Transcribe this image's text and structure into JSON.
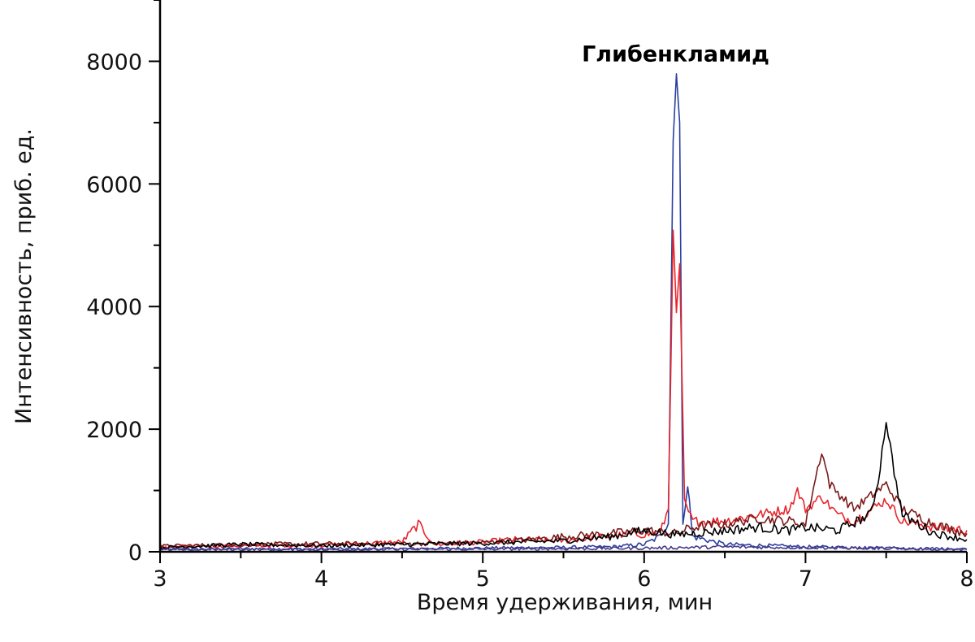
{
  "chart_data": {
    "type": "line",
    "title": "",
    "xlabel": "Время удерживания, мин",
    "ylabel": "Интенсивность, приб. ед.",
    "xlim": [
      3,
      8
    ],
    "ylim": [
      0,
      9000
    ],
    "x_ticks": [
      3,
      4,
      5,
      6,
      7,
      8
    ],
    "y_ticks": [
      0,
      2000,
      4000,
      6000,
      8000
    ],
    "x_tick_labels": [
      "3",
      "4",
      "5",
      "6",
      "7",
      "8"
    ],
    "y_tick_labels": [
      "0",
      "2000",
      "4000",
      "6000",
      "8000"
    ],
    "grid": false,
    "legend": "none",
    "annotations": [
      {
        "text": "Глибенкламид",
        "x": 6.2,
        "y": 8000
      }
    ],
    "series": [
      {
        "color": "#2b3fa0",
        "points": [
          [
            3.0,
            40
          ],
          [
            3.5,
            50
          ],
          [
            4.0,
            45
          ],
          [
            4.5,
            50
          ],
          [
            5.0,
            60
          ],
          [
            5.5,
            70
          ],
          [
            5.8,
            80
          ],
          [
            6.0,
            120
          ],
          [
            6.1,
            250
          ],
          [
            6.15,
            500
          ],
          [
            6.18,
            6700
          ],
          [
            6.2,
            7800
          ],
          [
            6.22,
            7000
          ],
          [
            6.24,
            500
          ],
          [
            6.27,
            1100
          ],
          [
            6.3,
            250
          ],
          [
            6.5,
            120
          ],
          [
            7.0,
            80
          ],
          [
            7.5,
            60
          ],
          [
            8.0,
            40
          ]
        ]
      },
      {
        "color": "#e8262d",
        "points": [
          [
            3.0,
            80
          ],
          [
            3.5,
            100
          ],
          [
            4.0,
            110
          ],
          [
            4.5,
            160
          ],
          [
            4.6,
            450
          ],
          [
            4.7,
            120
          ],
          [
            5.0,
            160
          ],
          [
            5.2,
            200
          ],
          [
            5.5,
            180
          ],
          [
            5.8,
            260
          ],
          [
            6.1,
            300
          ],
          [
            6.15,
            700
          ],
          [
            6.18,
            5250
          ],
          [
            6.2,
            3900
          ],
          [
            6.22,
            4700
          ],
          [
            6.25,
            800
          ],
          [
            6.3,
            500
          ],
          [
            6.5,
            500
          ],
          [
            6.7,
            600
          ],
          [
            6.9,
            700
          ],
          [
            6.95,
            1000
          ],
          [
            7.0,
            700
          ],
          [
            7.1,
            900
          ],
          [
            7.2,
            600
          ],
          [
            7.3,
            500
          ],
          [
            7.5,
            850
          ],
          [
            7.6,
            500
          ],
          [
            7.8,
            400
          ],
          [
            8.0,
            350
          ]
        ]
      },
      {
        "color": "#7a1a1a",
        "points": [
          [
            3.0,
            90
          ],
          [
            3.5,
            120
          ],
          [
            4.0,
            130
          ],
          [
            4.5,
            130
          ],
          [
            5.0,
            150
          ],
          [
            5.3,
            200
          ],
          [
            5.5,
            250
          ],
          [
            5.8,
            300
          ],
          [
            6.0,
            350
          ],
          [
            6.2,
            300
          ],
          [
            6.3,
            400
          ],
          [
            6.5,
            450
          ],
          [
            6.7,
            550
          ],
          [
            6.9,
            500
          ],
          [
            7.0,
            450
          ],
          [
            7.1,
            1650
          ],
          [
            7.15,
            1100
          ],
          [
            7.3,
            700
          ],
          [
            7.5,
            1100
          ],
          [
            7.6,
            700
          ],
          [
            7.8,
            450
          ],
          [
            8.0,
            300
          ]
        ]
      },
      {
        "color": "#000000",
        "points": [
          [
            3.0,
            70
          ],
          [
            3.5,
            120
          ],
          [
            4.0,
            100
          ],
          [
            4.5,
            120
          ],
          [
            5.0,
            140
          ],
          [
            5.5,
            180
          ],
          [
            5.8,
            250
          ],
          [
            6.0,
            350
          ],
          [
            6.2,
            280
          ],
          [
            6.4,
            320
          ],
          [
            6.7,
            400
          ],
          [
            6.9,
            350
          ],
          [
            7.0,
            400
          ],
          [
            7.2,
            350
          ],
          [
            7.4,
            600
          ],
          [
            7.45,
            1150
          ],
          [
            7.5,
            2150
          ],
          [
            7.55,
            1300
          ],
          [
            7.6,
            600
          ],
          [
            7.8,
            300
          ],
          [
            8.0,
            200
          ]
        ]
      },
      {
        "color": "#4a3a8a",
        "points": [
          [
            3.0,
            30
          ],
          [
            3.5,
            40
          ],
          [
            4.0,
            35
          ],
          [
            4.5,
            40
          ],
          [
            5.0,
            45
          ],
          [
            5.5,
            50
          ],
          [
            6.0,
            60
          ],
          [
            6.5,
            80
          ],
          [
            7.0,
            70
          ],
          [
            7.5,
            60
          ],
          [
            8.0,
            40
          ]
        ]
      }
    ]
  }
}
